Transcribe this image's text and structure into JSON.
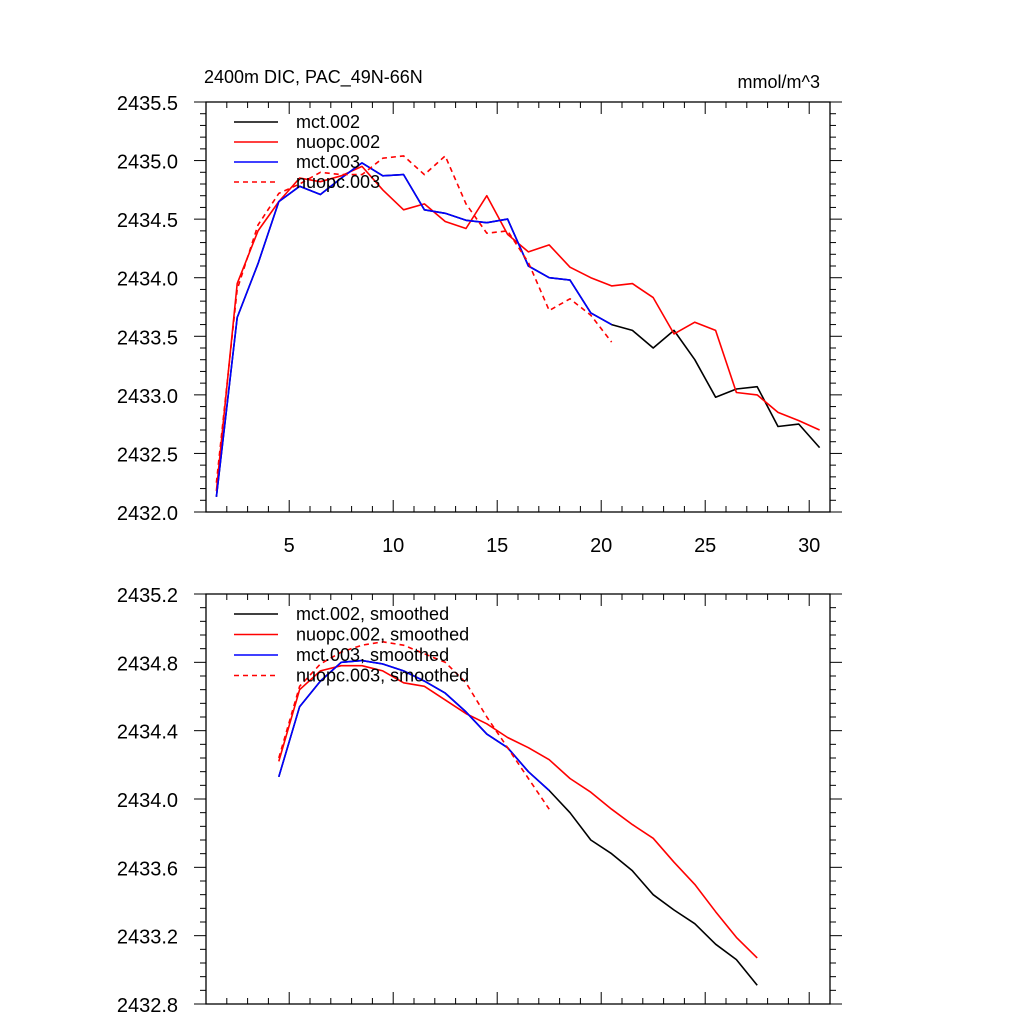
{
  "chart_data": [
    {
      "type": "line",
      "title": "2400m DIC, PAC_49N-66N",
      "units": "mmol/m^3",
      "xlim": [
        1,
        31
      ],
      "ylim": [
        2432.0,
        2435.5
      ],
      "x_ticks": [
        5,
        10,
        15,
        20,
        25,
        30
      ],
      "x_tick_labels": [
        "5",
        "10",
        "15",
        "20",
        "25",
        "30"
      ],
      "y_ticks": [
        2432.0,
        2432.5,
        2433.0,
        2433.5,
        2434.0,
        2434.5,
        2435.0,
        2435.5
      ],
      "y_tick_labels": [
        "2432.0",
        "2432.5",
        "2433.0",
        "2433.5",
        "2434.0",
        "2434.5",
        "2435.0",
        "2435.5"
      ],
      "legend_position": "top-left",
      "series": [
        {
          "name": "mct.002",
          "color": "#000000",
          "dash": false,
          "x": [
            1.5,
            2.5,
            3.5,
            4.5,
            5.5,
            6.5,
            7.5,
            8.5,
            9.5,
            10.5,
            11.5,
            12.5,
            13.5,
            14.5,
            15.5,
            16.5,
            17.5,
            18.5,
            19.5,
            20.5,
            21.5,
            22.5,
            23.5,
            24.5,
            25.5,
            26.5,
            27.5,
            28.5,
            29.5,
            30.5
          ],
          "y": [
            2432.13,
            2433.66,
            2434.12,
            2434.65,
            2434.78,
            2434.71,
            2434.85,
            2434.98,
            2434.87,
            2434.88,
            2434.58,
            2434.55,
            2434.49,
            2434.47,
            2434.5,
            2434.1,
            2434.0,
            2433.98,
            2433.7,
            2433.6,
            2433.55,
            2433.4,
            2433.55,
            2433.3,
            2432.98,
            2433.05,
            2433.07,
            2432.73,
            2432.75,
            2432.55
          ]
        },
        {
          "name": "nuopc.002",
          "color": "#ff0000",
          "dash": false,
          "x": [
            1.5,
            2.5,
            3.5,
            4.5,
            5.5,
            6.5,
            7.5,
            8.5,
            9.5,
            10.5,
            11.5,
            12.5,
            13.5,
            14.5,
            15.5,
            16.5,
            17.5,
            18.5,
            19.5,
            20.5,
            21.5,
            22.5,
            23.5,
            24.5,
            25.5,
            26.5,
            27.5,
            28.5,
            29.5,
            30.5
          ],
          "y": [
            2432.18,
            2433.95,
            2434.4,
            2434.65,
            2434.85,
            2434.82,
            2434.87,
            2434.95,
            2434.75,
            2434.58,
            2434.63,
            2434.48,
            2434.42,
            2434.7,
            2434.37,
            2434.22,
            2434.28,
            2434.09,
            2434.0,
            2433.93,
            2433.95,
            2433.83,
            2433.52,
            2433.62,
            2433.55,
            2433.02,
            2433.0,
            2432.85,
            2432.78,
            2432.7
          ]
        },
        {
          "name": "mct.003",
          "color": "#0000ff",
          "dash": false,
          "x": [
            1.5,
            2.5,
            3.5,
            4.5,
            5.5,
            6.5,
            7.5,
            8.5,
            9.5,
            10.5,
            11.5,
            12.5,
            13.5,
            14.5,
            15.5,
            16.5,
            17.5,
            18.5,
            19.5,
            20.5
          ],
          "y": [
            2432.13,
            2433.66,
            2434.12,
            2434.65,
            2434.78,
            2434.71,
            2434.85,
            2434.98,
            2434.87,
            2434.88,
            2434.58,
            2434.55,
            2434.49,
            2434.47,
            2434.5,
            2434.1,
            2434.0,
            2433.98,
            2433.7,
            2433.6
          ]
        },
        {
          "name": "nuopc.003",
          "color": "#ff0000",
          "dash": true,
          "x": [
            1.5,
            2.5,
            3.5,
            4.5,
            5.5,
            6.5,
            7.5,
            8.5,
            9.5,
            10.5,
            11.5,
            12.5,
            13.5,
            14.5,
            15.5,
            16.5,
            17.5,
            18.5,
            19.5,
            20.5
          ],
          "y": [
            2432.25,
            2433.9,
            2434.45,
            2434.72,
            2434.8,
            2434.9,
            2434.88,
            2434.88,
            2435.02,
            2435.04,
            2434.88,
            2435.04,
            2434.63,
            2434.38,
            2434.4,
            2434.13,
            2433.72,
            2433.82,
            2433.68,
            2433.45
          ]
        }
      ]
    },
    {
      "type": "line",
      "title": "",
      "xlim": [
        1,
        31
      ],
      "ylim": [
        2432.8,
        2435.2
      ],
      "x_ticks": [
        5,
        10,
        15,
        20,
        25,
        30
      ],
      "y_ticks": [
        2432.8,
        2433.2,
        2433.6,
        2434.0,
        2434.4,
        2434.8,
        2435.2
      ],
      "y_tick_labels": [
        "2432.8",
        "2433.2",
        "2433.6",
        "2434.0",
        "2434.4",
        "2434.8",
        "2435.2"
      ],
      "legend_position": "top-left",
      "series": [
        {
          "name": "mct.002, smoothed",
          "color": "#000000",
          "dash": false,
          "x": [
            4.5,
            5.5,
            6.5,
            7.5,
            8.5,
            9.5,
            10.5,
            11.5,
            12.5,
            13.5,
            14.5,
            15.5,
            16.5,
            17.5,
            18.5,
            19.5,
            20.5,
            21.5,
            22.5,
            23.5,
            24.5,
            25.5,
            26.5,
            27.5
          ],
          "y": [
            2434.13,
            2434.54,
            2434.69,
            2434.8,
            2434.81,
            2434.79,
            2434.75,
            2434.69,
            2434.62,
            2434.51,
            2434.38,
            2434.3,
            2434.16,
            2434.05,
            2433.92,
            2433.76,
            2433.68,
            2433.58,
            2433.44,
            2433.35,
            2433.27,
            2433.15,
            2433.06,
            2432.91
          ]
        },
        {
          "name": "nuopc.002, smoothed",
          "color": "#ff0000",
          "dash": false,
          "x": [
            4.5,
            5.5,
            6.5,
            7.5,
            8.5,
            9.5,
            10.5,
            11.5,
            12.5,
            13.5,
            14.5,
            15.5,
            16.5,
            17.5,
            18.5,
            19.5,
            20.5,
            21.5,
            22.5,
            23.5,
            24.5,
            25.5,
            26.5,
            27.5
          ],
          "y": [
            2434.22,
            2434.64,
            2434.75,
            2434.78,
            2434.78,
            2434.75,
            2434.68,
            2434.66,
            2434.58,
            2434.5,
            2434.44,
            2434.36,
            2434.3,
            2434.23,
            2434.12,
            2434.04,
            2433.94,
            2433.85,
            2433.77,
            2433.63,
            2433.5,
            2433.34,
            2433.19,
            2433.07
          ]
        },
        {
          "name": "mct.003, smoothed",
          "color": "#0000ff",
          "dash": false,
          "x": [
            4.5,
            5.5,
            6.5,
            7.5,
            8.5,
            9.5,
            10.5,
            11.5,
            12.5,
            13.5,
            14.5,
            15.5,
            16.5,
            17.5
          ],
          "y": [
            2434.13,
            2434.54,
            2434.69,
            2434.8,
            2434.81,
            2434.79,
            2434.75,
            2434.69,
            2434.62,
            2434.51,
            2434.38,
            2434.3,
            2434.16,
            2434.05
          ]
        },
        {
          "name": "nuopc.003, smoothed",
          "color": "#ff0000",
          "dash": true,
          "x": [
            4.5,
            5.5,
            6.5,
            7.5,
            8.5,
            9.5,
            10.5,
            11.5,
            12.5,
            13.5,
            14.5,
            15.5,
            16.5,
            17.5
          ],
          "y": [
            2434.24,
            2434.66,
            2434.79,
            2434.86,
            2434.9,
            2434.92,
            2434.9,
            2434.85,
            2434.8,
            2434.68,
            2434.48,
            2434.3,
            2434.12,
            2433.94
          ]
        }
      ]
    }
  ]
}
